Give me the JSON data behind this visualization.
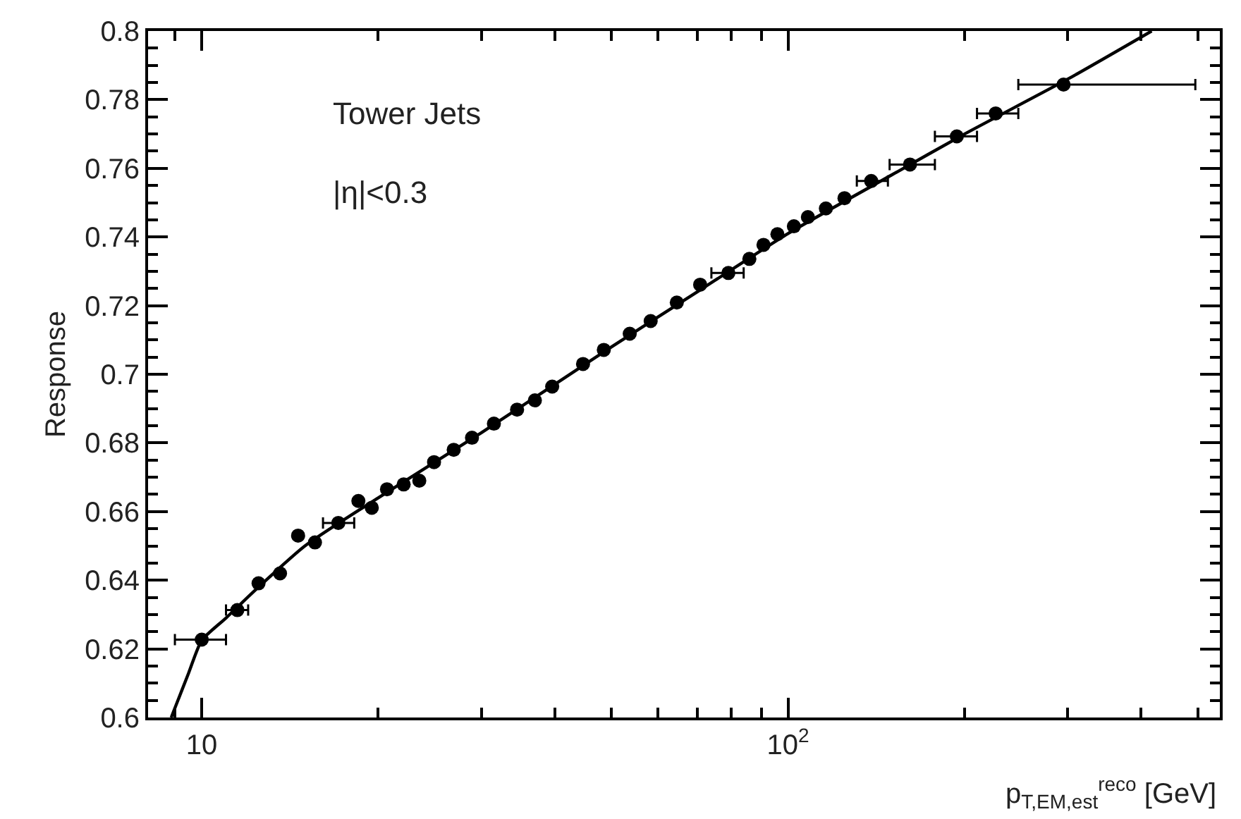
{
  "chart_data": {
    "type": "scatter",
    "xlabel": "p$_{T,EM,est}$$^{reco}$ [GeV]",
    "ylabel": "Response",
    "annotations": [
      "Tower Jets",
      "|η|<0.3"
    ],
    "log": "x",
    "marker": "circle",
    "xlim": [
      8.1,
      545
    ],
    "xticks": [
      {
        "value": 9,
        "label": null
      },
      {
        "value": 10,
        "label": "10"
      },
      {
        "value": 20,
        "label": null
      },
      {
        "value": 30,
        "label": null
      },
      {
        "value": 40,
        "label": null
      },
      {
        "value": 50,
        "label": null
      },
      {
        "value": 60,
        "label": null
      },
      {
        "value": 70,
        "label": null
      },
      {
        "value": 80,
        "label": null
      },
      {
        "value": 90,
        "label": null
      },
      {
        "value": 100,
        "label": "10$^{2}$"
      },
      {
        "value": 200,
        "label": null
      },
      {
        "value": 300,
        "label": null
      },
      {
        "value": 400,
        "label": null
      },
      {
        "value": 500,
        "label": null
      }
    ],
    "ylim": [
      0.6,
      0.8
    ],
    "yticks": [
      0.6,
      {
        "value": 0.605,
        "label": null
      },
      {
        "value": 0.61,
        "label": null
      },
      {
        "value": 0.615,
        "label": null
      },
      0.62,
      {
        "value": 0.625,
        "label": null
      },
      {
        "value": 0.63,
        "label": null
      },
      {
        "value": 0.635,
        "label": null
      },
      0.64,
      {
        "value": 0.645,
        "label": null
      },
      {
        "value": 0.65,
        "label": null
      },
      {
        "value": 0.655,
        "label": null
      },
      0.66,
      {
        "value": 0.665,
        "label": null
      },
      {
        "value": 0.67,
        "label": null
      },
      {
        "value": 0.675,
        "label": null
      },
      0.68,
      {
        "value": 0.685,
        "label": null
      },
      {
        "value": 0.69,
        "label": null
      },
      {
        "value": 0.695,
        "label": null
      },
      0.7,
      {
        "value": 0.705,
        "label": null
      },
      {
        "value": 0.71,
        "label": null
      },
      {
        "value": 0.715,
        "label": null
      },
      0.72,
      {
        "value": 0.725,
        "label": null
      },
      {
        "value": 0.73,
        "label": null
      },
      {
        "value": 0.735,
        "label": null
      },
      0.74,
      {
        "value": 0.745,
        "label": null
      },
      {
        "value": 0.75,
        "label": null
      },
      {
        "value": 0.755,
        "label": null
      },
      0.76,
      {
        "value": 0.765,
        "label": null
      },
      {
        "value": 0.77,
        "label": null
      },
      {
        "value": 0.775,
        "label": null
      },
      0.78,
      {
        "value": 0.785,
        "label": null
      },
      {
        "value": 0.79,
        "label": null
      },
      {
        "value": 0.795,
        "label": null
      },
      0.8
    ],
    "series": [
      {
        "color": "#000000",
        "x": [
          10.0,
          11.5,
          12.5,
          13.6,
          14.6,
          15.6,
          17.1,
          18.5,
          19.5,
          20.7,
          22.1,
          23.5,
          24.9,
          26.9,
          28.9,
          31.5,
          34.5,
          37.0,
          39.6,
          44.7,
          48.5,
          53.7,
          58.3,
          64.6,
          70.8,
          79.1,
          85.9,
          90.8,
          95.9,
          102.3,
          108.1,
          116,
          124.8,
          138.6,
          161.4,
          194,
          226,
          295
        ],
        "values": [
          0.6227,
          0.6313,
          0.6391,
          0.642,
          0.653,
          0.651,
          0.6567,
          0.6631,
          0.6611,
          0.6665,
          0.6679,
          0.669,
          0.6744,
          0.678,
          0.6815,
          0.6856,
          0.6897,
          0.6924,
          0.6964,
          0.703,
          0.7071,
          0.7118,
          0.7155,
          0.7209,
          0.7261,
          0.7295,
          0.7336,
          0.7377,
          0.7408,
          0.7431,
          0.7458,
          0.7483,
          0.7513,
          0.7563,
          0.7611,
          0.7693,
          0.776,
          0.7844
        ],
        "xerrors": [
          [
            9.0,
            11.0
          ],
          [
            11.0,
            12.0
          ],
          null,
          null,
          null,
          null,
          [
            16.1,
            18.2
          ],
          null,
          null,
          null,
          null,
          null,
          null,
          null,
          null,
          null,
          null,
          null,
          null,
          null,
          null,
          null,
          null,
          null,
          null,
          [
            74,
            84
          ],
          null,
          null,
          null,
          null,
          null,
          null,
          null,
          [
            131,
            148
          ],
          [
            149,
            178
          ],
          [
            178,
            210
          ],
          [
            210,
            247
          ],
          [
            247,
            495
          ]
        ]
      },
      {
        "type": "line",
        "color": "#000000",
        "marker": "none",
        "x": [
          8.87,
          9.5,
          10,
          11,
          12.5,
          15,
          20,
          30,
          50,
          70,
          100,
          150,
          200,
          300,
          417
        ],
        "values": [
          0.6,
          0.613,
          0.6225,
          0.629,
          0.638,
          0.65,
          0.664,
          0.683,
          0.708,
          0.724,
          0.741,
          0.758,
          0.77,
          0.786,
          0.8
        ]
      }
    ]
  }
}
